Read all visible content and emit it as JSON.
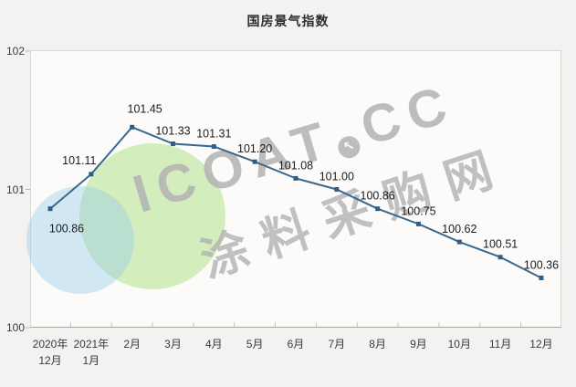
{
  "title": "国房景气指数",
  "watermark": {
    "brand_left": "ICOAT",
    "brand_right": "CC",
    "logo_glyph": "↖",
    "subtitle": "涂料采购网"
  },
  "colors": {
    "line": "#38688f",
    "marker": "#2f5f86",
    "data_label": "#1c1c1c",
    "axis_text": "#3a3a3a",
    "tick": "#c8c6c3",
    "watermark_gray": "#b2b2b2",
    "circle_green": "#cdeab8",
    "circle_blue": "#d9ecf6"
  },
  "chart_data": {
    "type": "line",
    "title": "国房景气指数",
    "categories": [
      "2020年\n12月",
      "2021年\n1月",
      "2月",
      "3月",
      "4月",
      "5月",
      "6月",
      "7月",
      "8月",
      "9月",
      "10月",
      "11月",
      "12月"
    ],
    "values": [
      100.86,
      101.11,
      101.45,
      101.33,
      101.31,
      101.2,
      101.08,
      101.0,
      100.86,
      100.75,
      100.62,
      100.51,
      100.36
    ],
    "data_labels": [
      "100.86",
      "101.11",
      "101.45",
      "101.33",
      "101.31",
      "101.20",
      "101.08",
      "101.00",
      "100.86",
      "100.75",
      "100.62",
      "100.51",
      "100.36"
    ],
    "xlabel": "",
    "ylabel": "",
    "yticks": [
      100,
      101,
      102
    ],
    "ylim": [
      100,
      102
    ],
    "grid": false,
    "legend": "none",
    "marker_shape": "square"
  }
}
